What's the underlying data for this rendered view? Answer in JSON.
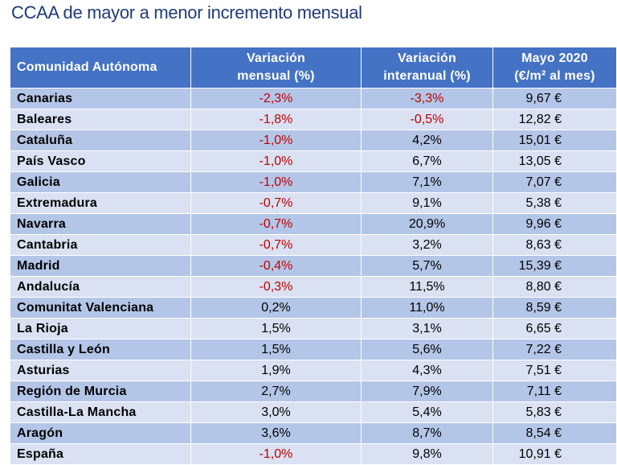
{
  "title": "CCAA de mayor a menor incremento mensual",
  "table": {
    "headers": [
      {
        "line1": "Comunidad Autónoma",
        "line2": ""
      },
      {
        "line1": "Variación",
        "line2": "mensual (%)"
      },
      {
        "line1": "Variación",
        "line2": "interanual (%)"
      },
      {
        "line1": "Mayo 2020",
        "line2": "(€/m² al mes)"
      }
    ],
    "rows": [
      {
        "region": "Canarias",
        "monthly": "-2,3%",
        "annual": "-3,3%",
        "price": "9,67 €"
      },
      {
        "region": "Baleares",
        "monthly": "-1,8%",
        "annual": "-0,5%",
        "price": "12,82 €"
      },
      {
        "region": "Cataluña",
        "monthly": "-1,0%",
        "annual": "4,2%",
        "price": "15,01 €"
      },
      {
        "region": "País Vasco",
        "monthly": "-1,0%",
        "annual": "6,7%",
        "price": "13,05 €"
      },
      {
        "region": "Galicia",
        "monthly": "-1,0%",
        "annual": "7,1%",
        "price": "7,07 €"
      },
      {
        "region": "Extremadura",
        "monthly": "-0,7%",
        "annual": "9,1%",
        "price": "5,38 €"
      },
      {
        "region": "Navarra",
        "monthly": "-0,7%",
        "annual": "20,9%",
        "price": "9,96 €"
      },
      {
        "region": "Cantabria",
        "monthly": "-0,7%",
        "annual": "3,2%",
        "price": "8,63 €"
      },
      {
        "region": "Madrid",
        "monthly": "-0,4%",
        "annual": "5,7%",
        "price": "15,39 €"
      },
      {
        "region": "Andalucía",
        "monthly": "-0,3%",
        "annual": "11,5%",
        "price": "8,80 €"
      },
      {
        "region": "Comunitat Valenciana",
        "monthly": "0,2%",
        "annual": "11,0%",
        "price": "8,59 €"
      },
      {
        "region": "La Rioja",
        "monthly": "1,5%",
        "annual": "3,1%",
        "price": "6,65 €"
      },
      {
        "region": "Castilla y León",
        "monthly": "1,5%",
        "annual": "5,6%",
        "price": "7,22 €"
      },
      {
        "region": "Asturias",
        "monthly": "1,9%",
        "annual": "4,3%",
        "price": "7,51 €"
      },
      {
        "region": "Región de Murcia",
        "monthly": "2,7%",
        "annual": "7,9%",
        "price": "7,11 €"
      },
      {
        "region": "Castilla-La Mancha",
        "monthly": "3,0%",
        "annual": "5,4%",
        "price": "5,83 €"
      },
      {
        "region": "Aragón",
        "monthly": "3,6%",
        "annual": "8,7%",
        "price": "8,54 €"
      },
      {
        "region": "España",
        "monthly": "-1,0%",
        "annual": "9,8%",
        "price": "10,91 €"
      }
    ]
  },
  "colors": {
    "title": "#1f3a78",
    "header_bg": "#4472c4",
    "row_dark": "#b4c6e7",
    "row_light": "#d9e1f2",
    "negative": "#c00000"
  }
}
